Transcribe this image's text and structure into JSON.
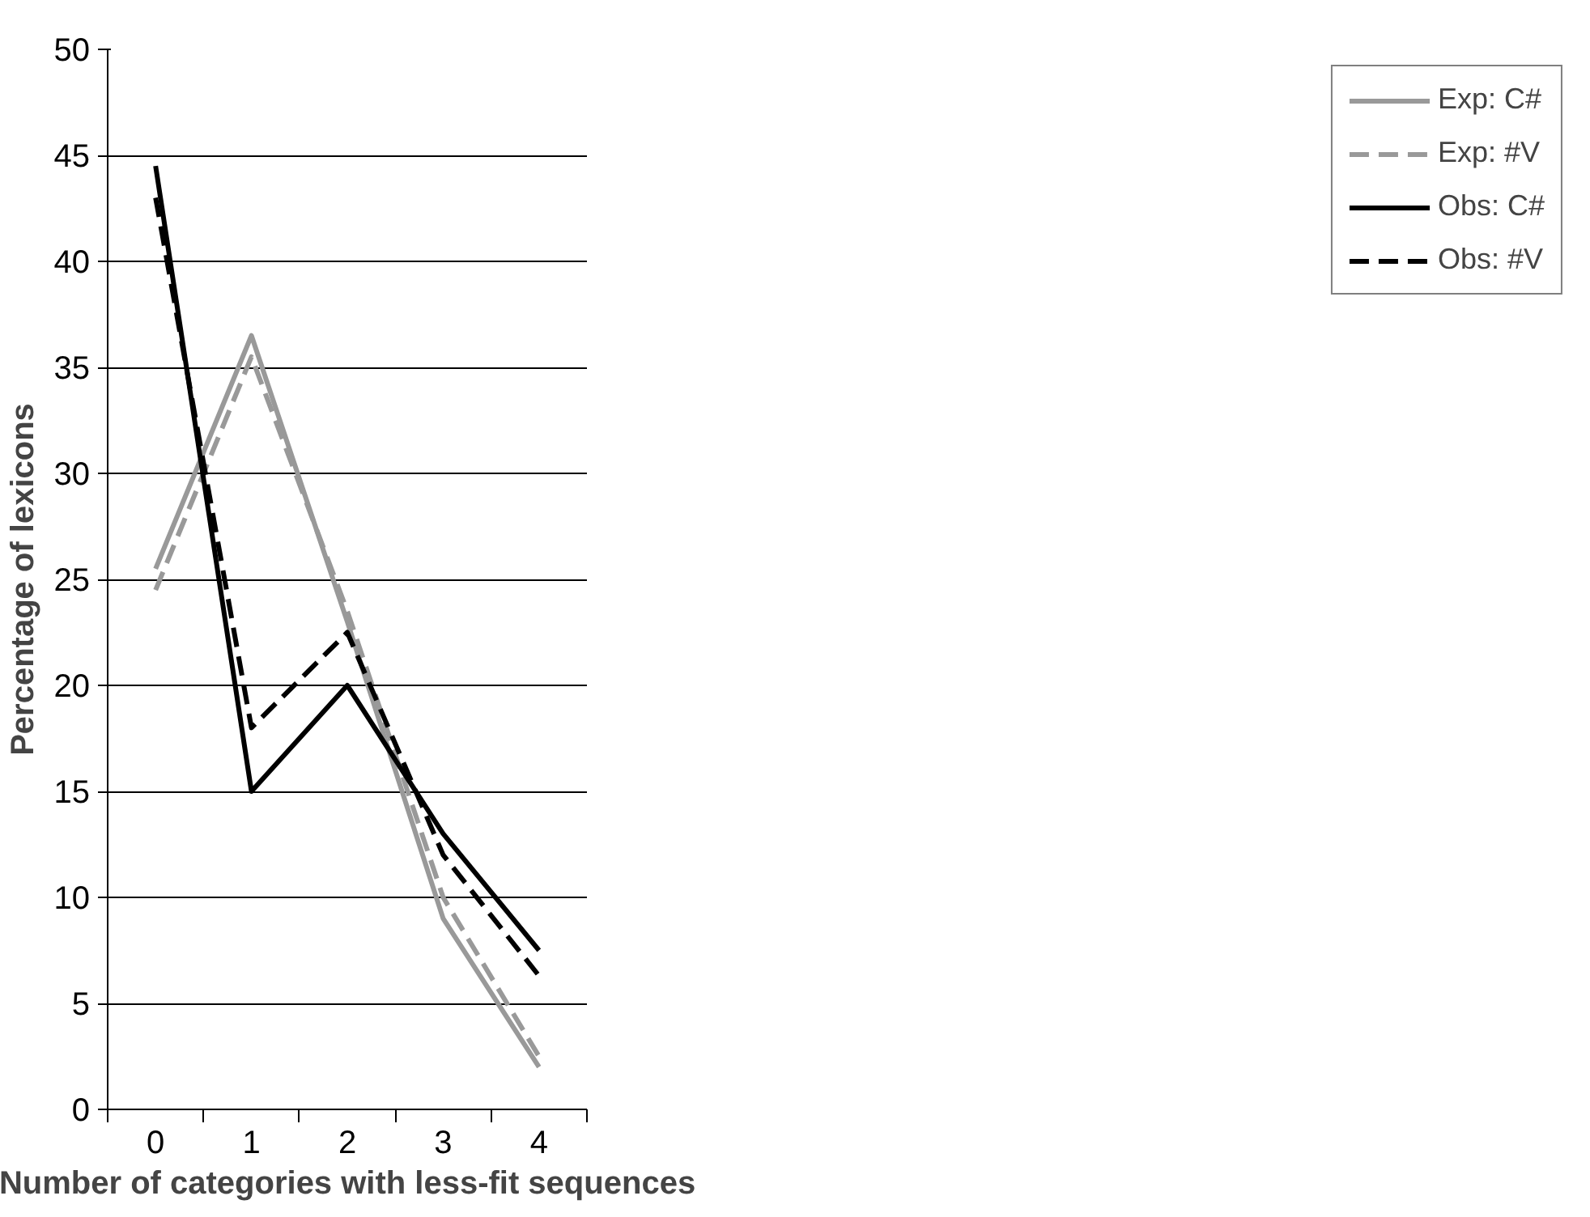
{
  "chart_data": {
    "type": "line",
    "xlabel": "Number of categories with less-fit sequences",
    "ylabel": "Percentage of lexicons",
    "categories": [
      "0",
      "1",
      "2",
      "3",
      "4"
    ],
    "ylim": [
      0,
      50
    ],
    "yticks": [
      0,
      5,
      10,
      15,
      20,
      25,
      30,
      35,
      40,
      45,
      50
    ],
    "grid": "y",
    "legend": "right",
    "marker": "none",
    "series": [
      {
        "name": "Exp: C#",
        "color": "#999999",
        "line_style": "solid",
        "values": [
          25.5,
          36.5,
          23,
          9,
          2
        ]
      },
      {
        "name": "Exp: #V",
        "color": "#999999",
        "line_style": "dashed",
        "values": [
          24.5,
          35.5,
          23.5,
          10,
          2.5
        ]
      },
      {
        "name": "Obs: C#",
        "color": "#000000",
        "line_style": "solid",
        "values": [
          44.5,
          15,
          20,
          13,
          7.5
        ]
      },
      {
        "name": "Obs: #V",
        "color": "#000000",
        "line_style": "dashed",
        "values": [
          43,
          18,
          22.5,
          12,
          6.3
        ]
      }
    ]
  }
}
